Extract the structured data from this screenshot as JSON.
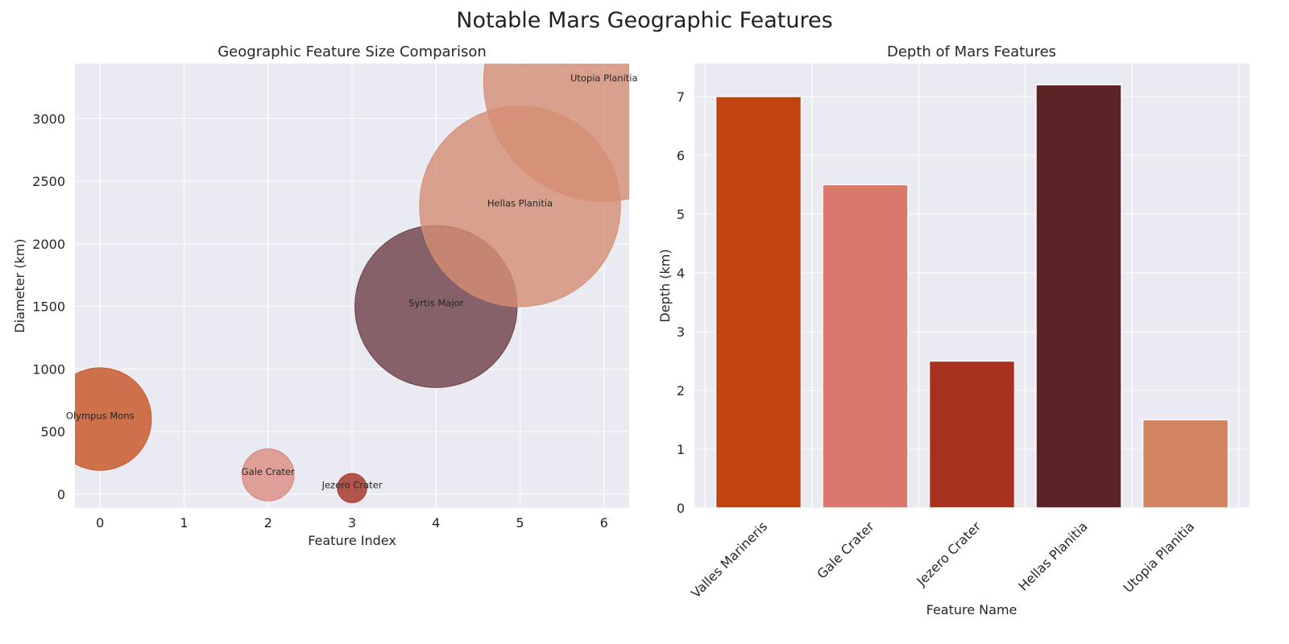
{
  "figure": {
    "title": "Notable Mars Geographic Features"
  },
  "chart_data": [
    {
      "type": "scatter",
      "title": "Geographic Feature Size Comparison",
      "xlabel": "Feature Index",
      "ylabel": "Diameter (km)",
      "xlim": [
        -0.3,
        6.3
      ],
      "ylim": [
        -110,
        3440
      ],
      "xticks": [
        0,
        1,
        2,
        3,
        4,
        5,
        6
      ],
      "yticks": [
        0,
        500,
        1000,
        1500,
        2000,
        2500,
        3000
      ],
      "grid": true,
      "points": [
        {
          "x": 0,
          "y": 600,
          "label": "Olympus Mons",
          "color": "#C85A2E",
          "alpha": 0.85
        },
        {
          "x": 2,
          "y": 154,
          "label": "Gale Crater",
          "color": "#D9857A",
          "alpha": 0.75
        },
        {
          "x": 3,
          "y": 49,
          "label": "Jezero Crater",
          "color": "#A83A2C",
          "alpha": 0.85
        },
        {
          "x": 4,
          "y": 1500,
          "label": "Syrtis Major",
          "color": "#6E3E46",
          "alpha": 0.8
        },
        {
          "x": 5,
          "y": 2300,
          "label": "Hellas Planitia",
          "color": "#D58E73",
          "alpha": 0.8
        },
        {
          "x": 6,
          "y": 3300,
          "label": "Utopia Planitia",
          "color": "#D58E73",
          "alpha": 0.8
        }
      ]
    },
    {
      "type": "bar",
      "title": "Depth of Mars Features",
      "xlabel": "Feature Name",
      "ylabel": "Depth (km)",
      "ylim": [
        0,
        7.56
      ],
      "yticks": [
        0,
        1,
        2,
        3,
        4,
        5,
        6,
        7
      ],
      "grid": true,
      "categories": [
        "Valles Marineris",
        "Gale Crater",
        "Jezero Crater",
        "Hellas Planitia",
        "Utopia Planitia"
      ],
      "values": [
        7.0,
        5.5,
        2.5,
        7.2,
        1.5
      ],
      "colors": [
        "#C1440E",
        "#D9786C",
        "#A8321D",
        "#5C2427",
        "#D2835F"
      ]
    }
  ]
}
